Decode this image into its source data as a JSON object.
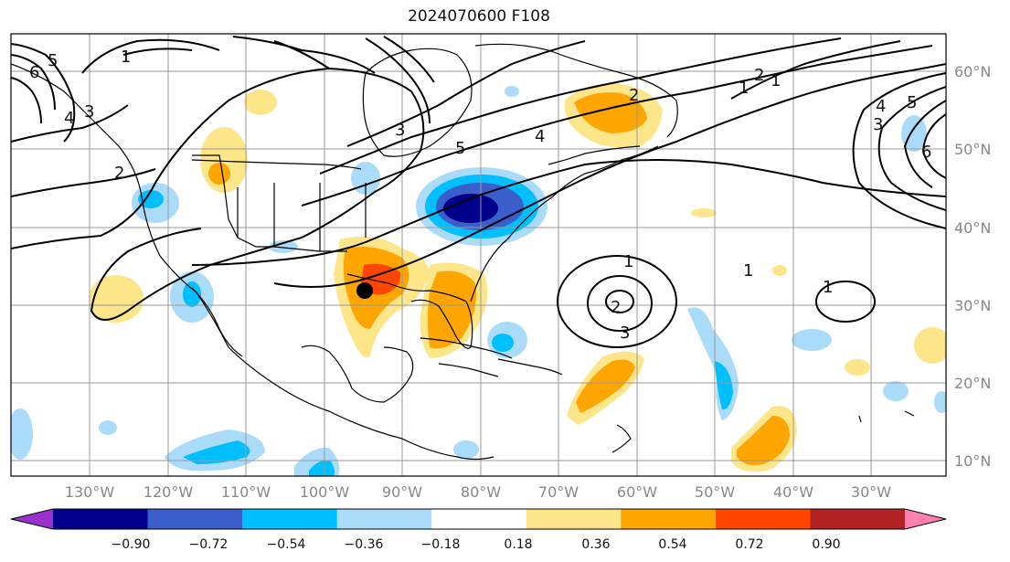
{
  "title": "2024070600 F108",
  "map": {
    "lon_ticks": [
      "130°W",
      "120°W",
      "110°W",
      "100°W",
      "90°W",
      "80°W",
      "70°W",
      "60°W",
      "50°W",
      "40°W",
      "30°W"
    ],
    "lat_ticks": [
      "60°N",
      "50°N",
      "40°N",
      "30°N",
      "20°N",
      "10°N"
    ],
    "contour_labels": [
      "1",
      "2",
      "3",
      "4",
      "5",
      "6",
      "1",
      "2",
      "3",
      "4",
      "5",
      "6",
      "1",
      "2",
      "3",
      "5",
      "4",
      "1",
      "2",
      "3",
      "1",
      "1"
    ],
    "marker": "storm-center-marker"
  },
  "colorbar": {
    "ticks": [
      "−0.90",
      "−0.72",
      "−0.54",
      "−0.36",
      "−0.18",
      "0.18",
      "0.36",
      "0.54",
      "0.72",
      "0.90"
    ],
    "colors": [
      "#9932cc",
      "#00008b",
      "#3a5fcd",
      "#00bfff",
      "#aadcfa",
      "#ffffff",
      "#fde68a",
      "#ffa500",
      "#ff4500",
      "#b22222",
      "#ff7fae"
    ]
  }
}
